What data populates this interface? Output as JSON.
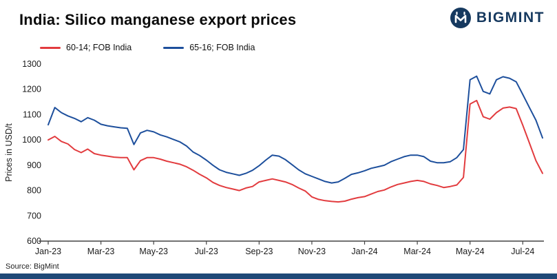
{
  "header": {
    "title": "India: Silico manganese export prices",
    "brand": "BIGMINT"
  },
  "footer": {
    "source": "Source: BigMint"
  },
  "colors": {
    "series_red": "#e23b3e",
    "series_blue": "#1d4f9c",
    "brand_navy": "#16395f",
    "bottom_strip": "#1f4977",
    "axis": "#444444",
    "text": "#1a1a1a"
  },
  "chart_data": {
    "type": "line",
    "title": "India: Silico manganese export prices",
    "xlabel": "",
    "ylabel": "Prices in USD/t",
    "ylim": [
      600,
      1300
    ],
    "y_ticks": [
      600,
      700,
      800,
      900,
      1000,
      1100,
      1200,
      1300
    ],
    "x_tick_labels": [
      "Jan-23",
      "Mar-23",
      "May-23",
      "Jul-23",
      "Sep-23",
      "Nov-23",
      "Jan-24",
      "Mar-24",
      "May-24",
      "Jul-24"
    ],
    "x_tick_month_step": 2,
    "x_months_span": 18.75,
    "grid": "off",
    "legend_position": "top-left",
    "series": [
      {
        "name": "60-14; FOB India",
        "color": "#e23b3e",
        "values": [
          1000,
          1014,
          994,
          984,
          962,
          950,
          964,
          946,
          940,
          936,
          932,
          930,
          930,
          882,
          918,
          930,
          930,
          924,
          916,
          910,
          904,
          894,
          880,
          864,
          850,
          832,
          820,
          812,
          806,
          800,
          810,
          816,
          834,
          840,
          846,
          840,
          834,
          824,
          810,
          798,
          775,
          765,
          760,
          757,
          755,
          758,
          766,
          772,
          776,
          786,
          796,
          802,
          814,
          824,
          830,
          836,
          840,
          836,
          826,
          820,
          812,
          816,
          822,
          852,
          1142,
          1156,
          1092,
          1082,
          1108,
          1126,
          1130,
          1124,
          1058,
          988,
          918,
          868
        ]
      },
      {
        "name": "65-16; FOB India",
        "color": "#1d4f9c",
        "values": [
          1060,
          1128,
          1108,
          1095,
          1085,
          1072,
          1088,
          1078,
          1062,
          1056,
          1052,
          1048,
          1046,
          982,
          1028,
          1038,
          1032,
          1020,
          1012,
          1002,
          992,
          976,
          952,
          938,
          920,
          900,
          882,
          872,
          866,
          860,
          868,
          880,
          898,
          920,
          940,
          936,
          922,
          902,
          882,
          866,
          856,
          846,
          836,
          830,
          834,
          848,
          864,
          870,
          878,
          888,
          894,
          900,
          914,
          924,
          934,
          940,
          940,
          934,
          916,
          910,
          910,
          914,
          930,
          962,
          1238,
          1252,
          1192,
          1182,
          1238,
          1250,
          1244,
          1230,
          1180,
          1128,
          1078,
          1008
        ]
      }
    ]
  }
}
